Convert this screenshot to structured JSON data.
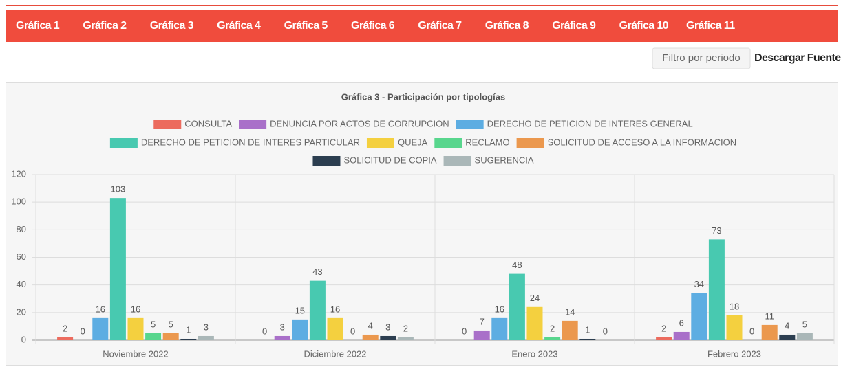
{
  "nav": [
    "Gráfica 1",
    "Gráfica 2",
    "Gráfica 3",
    "Gráfica 4",
    "Gráfica 5",
    "Gráfica 6",
    "Gráfica 7",
    "Gráfica 8",
    "Gráfica 9",
    "Gráfica 10",
    "Gráfica 11"
  ],
  "toolbar": {
    "filter": "Filtro por periodo",
    "download": "Descargar Fuente"
  },
  "chart_data": {
    "type": "bar",
    "title": "Gráfica 3 - Participación por tipologías",
    "categories": [
      "Noviembre 2022",
      "Diciembre 2022",
      "Enero 2023",
      "Febrero 2023"
    ],
    "series": [
      {
        "name": "CONSULTA",
        "color": "#ec6b5e",
        "values": [
          2,
          0,
          0,
          2
        ]
      },
      {
        "name": "DENUNCIA POR ACTOS DE CORRUPCION",
        "color": "#a970c9",
        "values": [
          0,
          3,
          7,
          6
        ]
      },
      {
        "name": "DERECHO DE PETICION DE INTERES GENERAL",
        "color": "#5dade2",
        "values": [
          16,
          15,
          16,
          34
        ]
      },
      {
        "name": "DERECHO DE PETICION DE INTERES PARTICULAR",
        "color": "#48c9b0",
        "values": [
          103,
          43,
          48,
          73
        ]
      },
      {
        "name": "QUEJA",
        "color": "#f4d03f",
        "values": [
          16,
          16,
          24,
          18
        ]
      },
      {
        "name": "RECLAMO",
        "color": "#58d68d",
        "values": [
          5,
          0,
          2,
          0
        ]
      },
      {
        "name": "SOLICITUD DE ACCESO A LA INFORMACION",
        "color": "#eb984e",
        "values": [
          5,
          4,
          14,
          11
        ]
      },
      {
        "name": "SOLICITUD DE COPIA",
        "color": "#2c3e50",
        "values": [
          1,
          3,
          1,
          4
        ]
      },
      {
        "name": "SUGERENCIA",
        "color": "#aab7b8",
        "values": [
          3,
          2,
          0,
          5
        ]
      }
    ],
    "ylim": [
      0,
      120
    ],
    "yticks": [
      0,
      20,
      40,
      60,
      80,
      100,
      120
    ],
    "grid": true
  }
}
